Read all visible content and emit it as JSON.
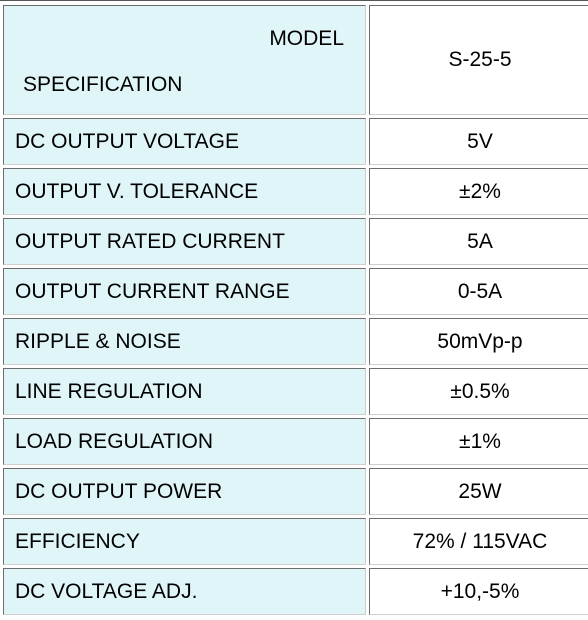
{
  "table": {
    "header": {
      "model_label": "MODEL",
      "spec_label": "SPECIFICATION",
      "model_value": "S-25-5"
    },
    "rows": [
      {
        "label": "DC OUTPUT VOLTAGE",
        "value": "5V"
      },
      {
        "label": "OUTPUT V. TOLERANCE",
        "value": "±2%"
      },
      {
        "label": "OUTPUT RATED CURRENT",
        "value": "5A"
      },
      {
        "label": "OUTPUT CURRENT RANGE",
        "value": "0-5A"
      },
      {
        "label": "RIPPLE & NOISE",
        "value": "50mVp-p"
      },
      {
        "label": "LINE REGULATION",
        "value": "±0.5%"
      },
      {
        "label": "LOAD REGULATION",
        "value": "±1%"
      },
      {
        "label": "DC OUTPUT POWER",
        "value": "25W"
      },
      {
        "label": "EFFICIENCY",
        "value": "72% / 115VAC"
      },
      {
        "label": "DC VOLTAGE ADJ.",
        "value": "+10,-5%"
      }
    ]
  },
  "colors": {
    "label_cell_background": "#dff5f8",
    "value_cell_background": "#ffffff",
    "border": "#6d6d6d"
  }
}
